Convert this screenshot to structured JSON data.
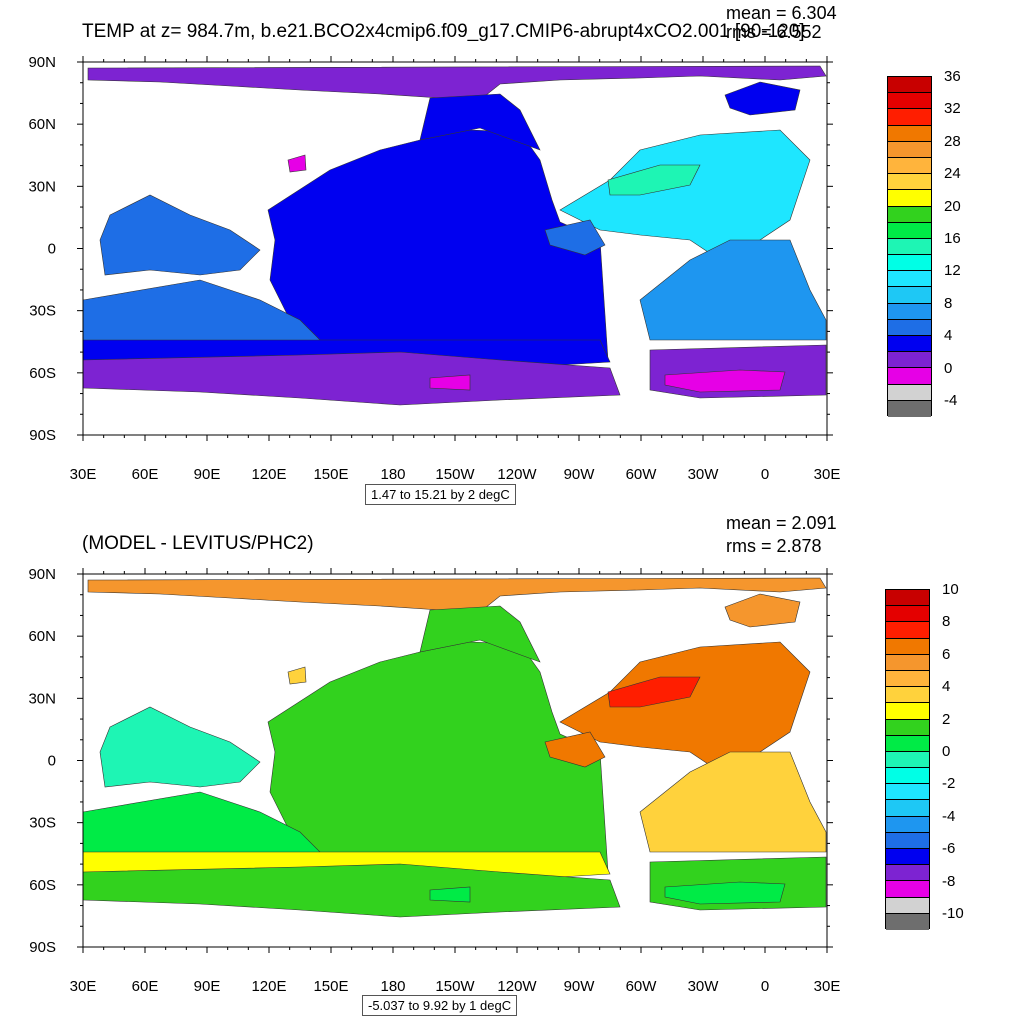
{
  "panels": [
    {
      "title": "TEMP at z= 984.7m, b.e21.BCO2x4cmip6.f09_g17.CMIP6-abrupt4xCO2.001 [90-120]",
      "mean_text": "mean = 6.304",
      "rms_text": "rms = 6.552",
      "range_text": "1.47 to 15.21 by 2 degC",
      "x_tick_labels": [
        "30E",
        "60E",
        "90E",
        "120E",
        "150E",
        "180",
        "150W",
        "120W",
        "90W",
        "60W",
        "30W",
        "0",
        "30E"
      ],
      "y_tick_labels": [
        "90N",
        "60N",
        "30N",
        "0",
        "30S",
        "60S",
        "90S"
      ],
      "colorbar": {
        "labels": [
          "36",
          "32",
          "28",
          "24",
          "20",
          "16",
          "12",
          "8",
          "4",
          "0",
          "-4"
        ],
        "colors": [
          "#c80000",
          "#e40000",
          "#ff1e00",
          "#f07800",
          "#f5962d",
          "#ffb43c",
          "#ffd23c",
          "#ffff00",
          "#32d21e",
          "#00eb46",
          "#1ef5b4",
          "#00ffe6",
          "#1ee6ff",
          "#1ec8f5",
          "#1e96f0",
          "#1e6ee6",
          "#0000f0",
          "#7d23d2",
          "#e600e6",
          "#d2d2d2",
          "#6e6e6e"
        ]
      },
      "land_color": "#ffffff",
      "ocean_colors": {
        "arctic": "#7d23d2",
        "north_pacific": "#0000f0",
        "pacific": "#0000f0",
        "indian_north": "#1e6ee6",
        "indian_south": "#1e6ee6",
        "north_atlantic": "#1ee6ff",
        "north_atlantic_core": "#1ef5b4",
        "south_atlantic": "#1e96f0",
        "caribbean": "#1e6ee6",
        "southern_ocean": "#7d23d2",
        "weddell_patch": "#e600e6",
        "ross_patch": "#e600e6",
        "hudson_patch": "#e600e6",
        "nordic_seas": "#0000f0",
        "south_band": "#0000f0"
      }
    },
    {
      "title": "(MODEL - LEVITUS/PHC2)",
      "mean_text": "mean = 2.091",
      "rms_text": "rms = 2.878",
      "range_text": "-5.037 to 9.92 by 1 degC",
      "x_tick_labels": [
        "30E",
        "60E",
        "90E",
        "120E",
        "150E",
        "180",
        "150W",
        "120W",
        "90W",
        "60W",
        "30W",
        "0",
        "30E"
      ],
      "y_tick_labels": [
        "90N",
        "60N",
        "30N",
        "0",
        "30S",
        "60S",
        "90S"
      ],
      "colorbar": {
        "labels": [
          "10",
          "8",
          "6",
          "4",
          "2",
          "0",
          "-2",
          "-4",
          "-6",
          "-8",
          "-10"
        ],
        "colors": [
          "#c80000",
          "#e40000",
          "#ff1e00",
          "#f07800",
          "#f5962d",
          "#ffb43c",
          "#ffd23c",
          "#ffff00",
          "#32d21e",
          "#00eb46",
          "#1ef5b4",
          "#00ffe6",
          "#1ee6ff",
          "#1ec8f5",
          "#1e96f0",
          "#1e6ee6",
          "#0000f0",
          "#7d23d2",
          "#e600e6",
          "#d2d2d2",
          "#6e6e6e"
        ]
      },
      "land_color": "#ffffff",
      "ocean_colors": {
        "arctic": "#f5962d",
        "north_pacific": "#32d21e",
        "pacific": "#32d21e",
        "indian_north": "#1ef5b4",
        "indian_south": "#00eb46",
        "north_atlantic": "#f07800",
        "north_atlantic_core": "#ff1e00",
        "south_atlantic": "#ffd23c",
        "caribbean": "#f07800",
        "southern_ocean": "#32d21e",
        "weddell_patch": "#00eb46",
        "ross_patch": "#00eb46",
        "hudson_patch": "#ffd23c",
        "nordic_seas": "#f5962d",
        "south_band": "#ffff00"
      }
    }
  ],
  "chart_data": [
    {
      "type": "heatmap",
      "title": "TEMP at z= 984.7m, b.e21.BCO2x4cmip6.f09_g17.CMIP6-abrupt4xCO2.001 [90-120]",
      "mean": 6.304,
      "rms": 6.552,
      "contour_min": 1.47,
      "contour_max": 15.21,
      "contour_interval": 2,
      "units": "degC",
      "x_ticks": [
        "30E",
        "60E",
        "90E",
        "120E",
        "150E",
        "180",
        "150W",
        "120W",
        "90W",
        "60W",
        "30W",
        "0",
        "30E"
      ],
      "y_ticks": [
        "90N",
        "60N",
        "30N",
        "0",
        "30S",
        "60S",
        "90S"
      ],
      "colorbar_levels": [
        36,
        32,
        28,
        24,
        20,
        16,
        12,
        8,
        4,
        0,
        -4
      ],
      "grid": false
    },
    {
      "type": "heatmap",
      "title": "(MODEL - LEVITUS/PHC2)",
      "mean": 2.091,
      "rms": 2.878,
      "contour_min": -5.037,
      "contour_max": 9.92,
      "contour_interval": 1,
      "units": "degC",
      "x_ticks": [
        "30E",
        "60E",
        "90E",
        "120E",
        "150E",
        "180",
        "150W",
        "120W",
        "90W",
        "60W",
        "30W",
        "0",
        "30E"
      ],
      "y_ticks": [
        "90N",
        "60N",
        "30N",
        "0",
        "30S",
        "60S",
        "90S"
      ],
      "colorbar_levels": [
        10,
        8,
        6,
        4,
        2,
        0,
        -2,
        -4,
        -6,
        -8,
        -10
      ],
      "grid": false
    }
  ]
}
